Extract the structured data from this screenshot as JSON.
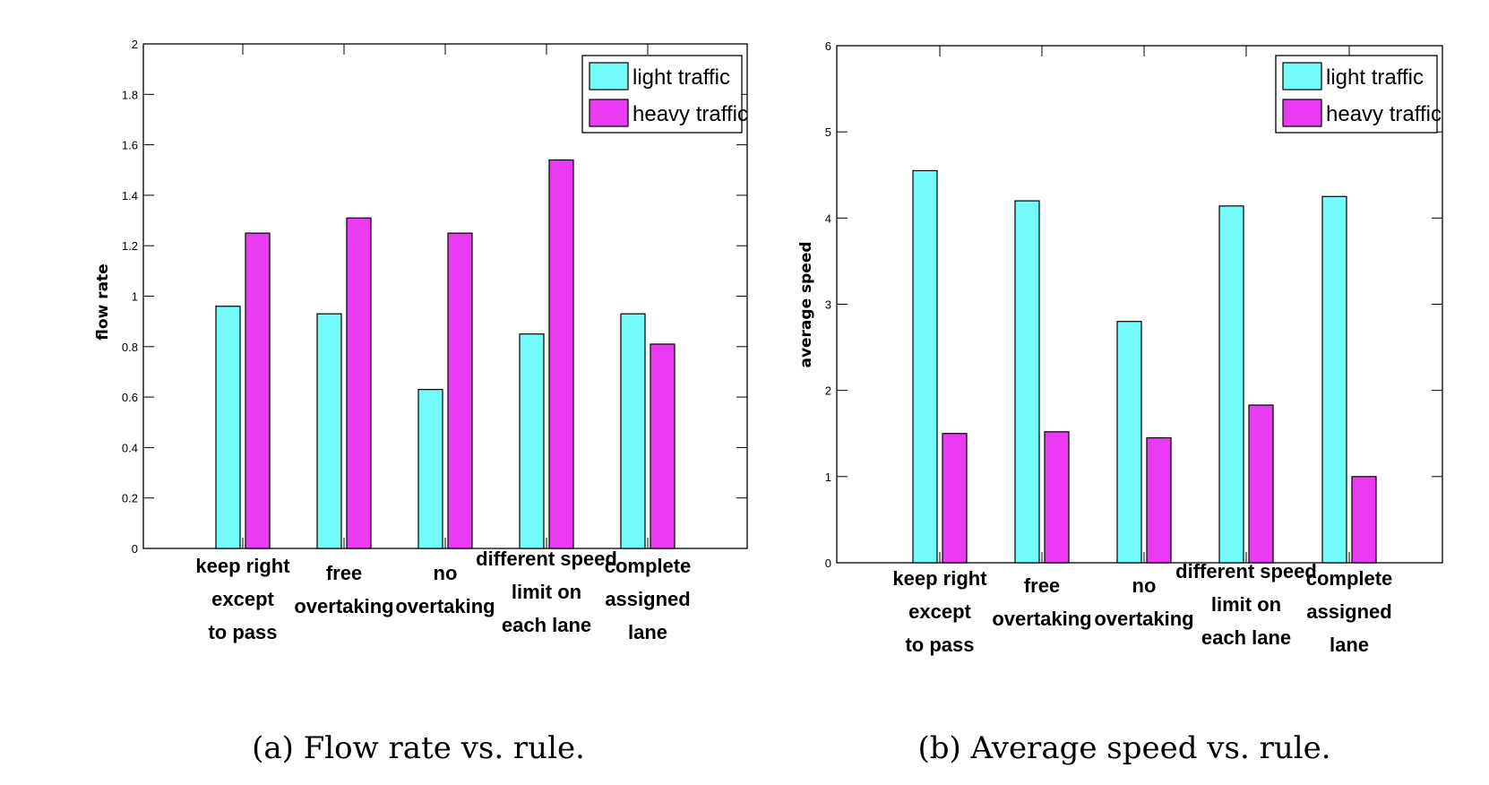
{
  "colors": {
    "light": "#73fbfb",
    "heavy": "#ea3bf3"
  },
  "chart_data": [
    {
      "type": "bar",
      "caption": "(a) Flow rate vs. rule.",
      "ylabel": "flow rate",
      "xlabel": "",
      "ylim": [
        0,
        2
      ],
      "yticks": [
        "0",
        "0.2",
        "0.4",
        "0.6",
        "0.8",
        "1",
        "1.2",
        "1.4",
        "1.6",
        "1.8",
        "2"
      ],
      "categories": [
        [
          "keep right",
          "except",
          "to pass"
        ],
        [
          "free",
          "overtaking"
        ],
        [
          "no",
          "overtaking"
        ],
        [
          "different speed",
          "limit on",
          "each lane"
        ],
        [
          "complete",
          "assigned",
          "lane"
        ]
      ],
      "series": [
        {
          "name": "light traffic",
          "values": [
            0.96,
            0.93,
            0.63,
            0.85,
            0.93
          ]
        },
        {
          "name": "heavy traffic",
          "values": [
            1.25,
            1.31,
            1.25,
            1.54,
            0.81
          ]
        }
      ],
      "legend": "top-right",
      "grid": false
    },
    {
      "type": "bar",
      "caption": "(b) Average speed vs. rule.",
      "ylabel": "average speed",
      "xlabel": "",
      "ylim": [
        0,
        6
      ],
      "yticks": [
        "0",
        "1",
        "2",
        "3",
        "4",
        "5",
        "6"
      ],
      "categories": [
        [
          "keep right",
          "except",
          "to pass"
        ],
        [
          "free",
          "overtaking"
        ],
        [
          "no",
          "overtaking"
        ],
        [
          "different speed",
          "limit on",
          "each lane"
        ],
        [
          "complete",
          "assigned",
          "lane"
        ]
      ],
      "series": [
        {
          "name": "light traffic",
          "values": [
            4.55,
            4.2,
            2.8,
            4.14,
            4.25
          ]
        },
        {
          "name": "heavy traffic",
          "values": [
            1.5,
            1.52,
            1.45,
            1.83,
            1.0
          ]
        }
      ],
      "legend": "top-right",
      "grid": false
    }
  ]
}
